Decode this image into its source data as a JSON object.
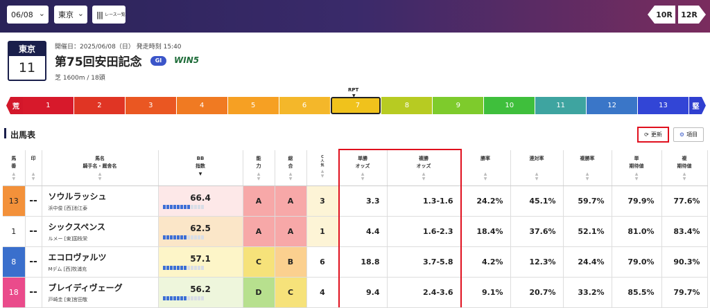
{
  "header": {
    "date_value": "06/08",
    "venue_value": "東京",
    "race_list_label": "レース一覧",
    "prev_race": "10R",
    "next_race": "12R"
  },
  "race": {
    "venue": "東京",
    "number": "11",
    "meta": "開催日：2025/06/08（日） 発走時刻 15:40",
    "title": "第75回安田記念",
    "grade": "GI",
    "win5": "WIN5",
    "course": "芝 1600m / 18頭"
  },
  "rpt": {
    "label": "RPT",
    "left_label": "荒",
    "right_label": "堅",
    "selected": "7",
    "segments": [
      {
        "label": "1",
        "color": "#d7192b"
      },
      {
        "label": "2",
        "color": "#e03524"
      },
      {
        "label": "3",
        "color": "#ea5722"
      },
      {
        "label": "4",
        "color": "#f07a22"
      },
      {
        "label": "5",
        "color": "#f6a023"
      },
      {
        "label": "6",
        "color": "#f4b72a"
      },
      {
        "label": "7",
        "color": "#f0c21c"
      },
      {
        "label": "8",
        "color": "#b7cb22"
      },
      {
        "label": "9",
        "color": "#7ecb2c"
      },
      {
        "label": "10",
        "color": "#3fbf3c"
      },
      {
        "label": "11",
        "color": "#3ea4a0"
      },
      {
        "label": "12",
        "color": "#3a76c8"
      },
      {
        "label": "13",
        "color": "#3245d6"
      }
    ]
  },
  "entries_section": {
    "title": "出馬表",
    "update_label": "更新",
    "items_label": "項目"
  },
  "table": {
    "headers": {
      "num": [
        "馬",
        "番"
      ],
      "mark": "印",
      "horse": [
        "馬名",
        "騎手名・厩舎名"
      ],
      "bb": [
        "BB",
        "指数"
      ],
      "ability": [
        "能",
        "力"
      ],
      "total": [
        "総",
        "合"
      ],
      "cpop": [
        "C",
        "人",
        "気"
      ],
      "win_odds": [
        "単勝",
        "オッズ"
      ],
      "place_odds": [
        "複勝",
        "オッズ"
      ],
      "win_rate": "勝率",
      "quinella_rate": "連対率",
      "place_rate": "複勝率",
      "win_ev": [
        "単",
        "期待値"
      ],
      "place_ev": [
        "複",
        "期待値"
      ]
    },
    "rows": [
      {
        "num": "13",
        "num_bg": "#f3913a",
        "num_color": "#222",
        "mark": "--",
        "horse": "ソウルラッシュ",
        "jockey": "浜中俊 [西]池江泰",
        "bb": "66.4",
        "bb_level": 0.66,
        "bb_bg": "#fde8e8",
        "ability": "A",
        "ability_bg": "#f7a8a8",
        "total": "A",
        "total_bg": "#f7a8a8",
        "cpop": "3",
        "cpop_bg": "#fdf4d6",
        "win_odds": "3.3",
        "place_odds": "1.3-1.6",
        "win_rate": "24.2%",
        "quinella_rate": "45.1%",
        "place_rate": "59.7%",
        "win_ev": "79.9%",
        "place_ev": "77.6%"
      },
      {
        "num": "1",
        "num_bg": "#ffffff",
        "num_color": "#222",
        "mark": "--",
        "horse": "シックスペンス",
        "jockey": "ルメー [東]国枝栄",
        "bb": "62.5",
        "bb_level": 0.62,
        "bb_bg": "#fbe6c8",
        "ability": "A",
        "ability_bg": "#f7a8a8",
        "total": "A",
        "total_bg": "#f7a8a8",
        "cpop": "1",
        "cpop_bg": "#fdf4d6",
        "win_odds": "4.4",
        "place_odds": "1.6-2.3",
        "win_rate": "18.4%",
        "quinella_rate": "37.6%",
        "place_rate": "52.1%",
        "win_ev": "81.0%",
        "place_ev": "83.4%"
      },
      {
        "num": "8",
        "num_bg": "#3a6fcc",
        "num_color": "#fff",
        "mark": "--",
        "horse": "エコロヴァルツ",
        "jockey": "Mデム [西]牧浦充",
        "bb": "57.1",
        "bb_level": 0.57,
        "bb_bg": "#fdf5c8",
        "ability": "C",
        "ability_bg": "#f6e27a",
        "total": "B",
        "total_bg": "#fbd08f",
        "cpop": "6",
        "cpop_bg": "#ffffff",
        "win_odds": "18.8",
        "place_odds": "3.7-5.8",
        "win_rate": "4.2%",
        "quinella_rate": "12.3%",
        "place_rate": "24.4%",
        "win_ev": "79.0%",
        "place_ev": "90.3%"
      },
      {
        "num": "18",
        "num_bg": "#ea4b8b",
        "num_color": "#fff",
        "mark": "--",
        "horse": "ブレイディヴェーグ",
        "jockey": "戸崎圭 [東]宮田敬",
        "bb": "56.2",
        "bb_level": 0.56,
        "bb_bg": "#eef6dc",
        "ability": "D",
        "ability_bg": "#b7e08e",
        "total": "C",
        "total_bg": "#f6e27a",
        "cpop": "4",
        "cpop_bg": "#ffffff",
        "win_odds": "9.4",
        "place_odds": "2.4-3.6",
        "win_rate": "9.1%",
        "quinella_rate": "20.7%",
        "place_rate": "33.2%",
        "win_ev": "85.5%",
        "place_ev": "79.7%"
      }
    ]
  }
}
